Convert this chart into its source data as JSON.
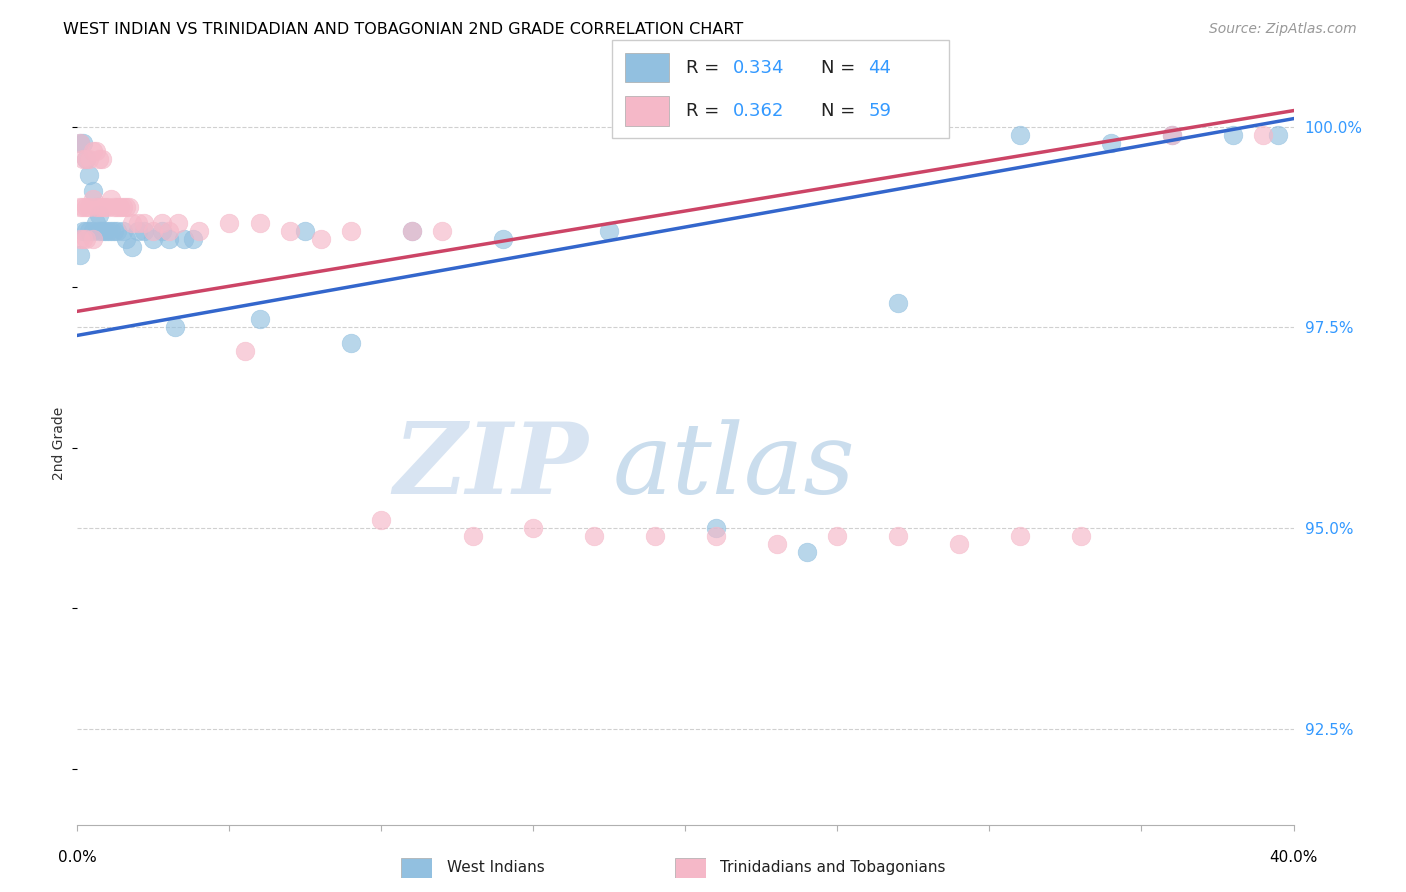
{
  "title": "WEST INDIAN VS TRINIDADIAN AND TOBAGONIAN 2ND GRADE CORRELATION CHART",
  "source": "Source: ZipAtlas.com",
  "ylabel": "2nd Grade",
  "ylabel_right_labels": [
    "100.0%",
    "97.5%",
    "95.0%",
    "92.5%"
  ],
  "ylabel_right_values": [
    1.0,
    0.975,
    0.95,
    0.925
  ],
  "xmin": 0.0,
  "xmax": 0.4,
  "ymin": 0.913,
  "ymax": 1.008,
  "watermark_zip": "ZIP",
  "watermark_atlas": "atlas",
  "legend_blue_r": "0.334",
  "legend_blue_n": "44",
  "legend_pink_r": "0.362",
  "legend_pink_n": "59",
  "blue_color": "#92c0e0",
  "pink_color": "#f5b8c8",
  "blue_line_color": "#3366cc",
  "pink_line_color": "#cc4466",
  "grid_color": "#d0d0d0",
  "blue_x": [
    0.001,
    0.001,
    0.002,
    0.002,
    0.003,
    0.003,
    0.004,
    0.004,
    0.005,
    0.005,
    0.006,
    0.007,
    0.007,
    0.008,
    0.009,
    0.01,
    0.011,
    0.012,
    0.013,
    0.015,
    0.016,
    0.018,
    0.02,
    0.022,
    0.025,
    0.028,
    0.03,
    0.032,
    0.035,
    0.038,
    0.06,
    0.075,
    0.09,
    0.11,
    0.14,
    0.175,
    0.21,
    0.24,
    0.27,
    0.31,
    0.34,
    0.36,
    0.38,
    0.395
  ],
  "blue_y": [
    0.998,
    0.984,
    0.998,
    0.987,
    0.996,
    0.987,
    0.994,
    0.987,
    0.992,
    0.987,
    0.988,
    0.989,
    0.987,
    0.987,
    0.987,
    0.987,
    0.987,
    0.987,
    0.987,
    0.987,
    0.986,
    0.985,
    0.987,
    0.987,
    0.986,
    0.987,
    0.986,
    0.975,
    0.986,
    0.986,
    0.976,
    0.987,
    0.973,
    0.987,
    0.986,
    0.987,
    0.95,
    0.947,
    0.978,
    0.999,
    0.998,
    0.999,
    0.999,
    0.999
  ],
  "pink_x": [
    0.001,
    0.001,
    0.001,
    0.002,
    0.002,
    0.002,
    0.003,
    0.003,
    0.003,
    0.004,
    0.004,
    0.005,
    0.005,
    0.005,
    0.006,
    0.006,
    0.007,
    0.007,
    0.008,
    0.008,
    0.009,
    0.01,
    0.011,
    0.012,
    0.013,
    0.014,
    0.015,
    0.016,
    0.017,
    0.018,
    0.02,
    0.022,
    0.025,
    0.028,
    0.03,
    0.033,
    0.04,
    0.05,
    0.055,
    0.06,
    0.07,
    0.08,
    0.09,
    0.1,
    0.11,
    0.12,
    0.13,
    0.15,
    0.17,
    0.19,
    0.21,
    0.23,
    0.25,
    0.27,
    0.29,
    0.31,
    0.33,
    0.36,
    0.39
  ],
  "pink_y": [
    0.998,
    0.99,
    0.986,
    0.996,
    0.99,
    0.986,
    0.996,
    0.99,
    0.986,
    0.996,
    0.99,
    0.997,
    0.991,
    0.986,
    0.997,
    0.99,
    0.996,
    0.99,
    0.996,
    0.99,
    0.99,
    0.99,
    0.991,
    0.99,
    0.99,
    0.99,
    0.99,
    0.99,
    0.99,
    0.988,
    0.988,
    0.988,
    0.987,
    0.988,
    0.987,
    0.988,
    0.987,
    0.988,
    0.972,
    0.988,
    0.987,
    0.986,
    0.987,
    0.951,
    0.987,
    0.987,
    0.949,
    0.95,
    0.949,
    0.949,
    0.949,
    0.948,
    0.949,
    0.949,
    0.948,
    0.949,
    0.949,
    0.999,
    0.999
  ]
}
